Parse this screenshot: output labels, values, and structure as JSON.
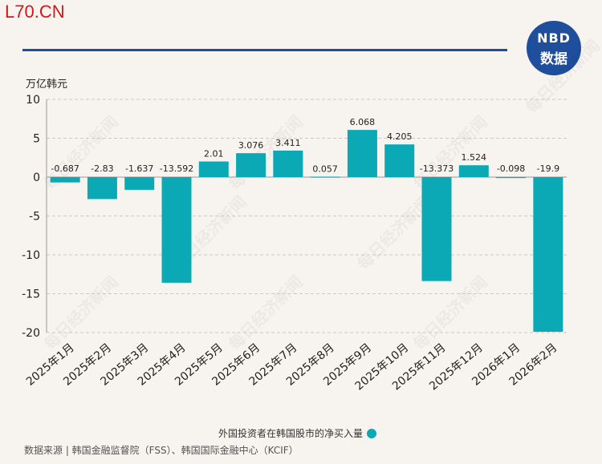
{
  "site_tag": "L70.CN",
  "logo": {
    "line1": "NBD",
    "line2": "数据"
  },
  "watermark_text": "每日经济新闻",
  "colors": {
    "bar": "#0aa9b5",
    "accent_rule": "#1f4e9c",
    "site_tag": "#d0181b"
  },
  "chart_data": {
    "type": "bar",
    "categories": [
      "2025年1月",
      "2025年2月",
      "2025年3月",
      "2025年4月",
      "2025年5月",
      "2025年6月",
      "2025年7月",
      "2025年8月",
      "2025年9月",
      "2025年10月",
      "2025年11月",
      "2025年12月",
      "2026年1月",
      "2026年2月"
    ],
    "values": [
      -0.687,
      -2.83,
      -1.637,
      -13.592,
      2.01,
      3.076,
      3.411,
      0.057,
      6.068,
      4.205,
      -13.373,
      1.524,
      -0.098,
      -19.9
    ],
    "value_labels": [
      "-0.687",
      "-2.83",
      "-1.637",
      "-13.592",
      "2.01",
      "3.076",
      "3.411",
      "0.057",
      "6.068",
      "4.205",
      "-13.373",
      "1.524",
      "-0.098",
      "-19.9"
    ],
    "ylabel": "万亿韩元",
    "ylim": [
      -20,
      10
    ],
    "yticks": [
      10,
      5,
      0,
      -5,
      -10,
      -15,
      -20
    ],
    "grid": true,
    "legend": {
      "label": "外国投资者在韩国股市的净买入量",
      "placement": "bottom"
    }
  },
  "source": "数据来源 | 韩国金融监督院（FSS）、韩国国际金融中心（KCIF）"
}
